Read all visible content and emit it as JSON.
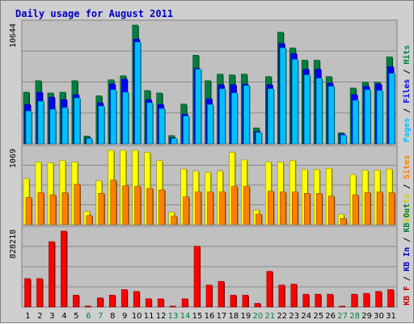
{
  "chart_data": {
    "type": "bar",
    "title": "Daily usage for August 2011",
    "categories": [
      "1",
      "2",
      "3",
      "4",
      "5",
      "6",
      "7",
      "8",
      "9",
      "10",
      "11",
      "12",
      "13",
      "14",
      "15",
      "16",
      "17",
      "18",
      "19",
      "20",
      "21",
      "22",
      "23",
      "24",
      "25",
      "26",
      "27",
      "28",
      "29",
      "30",
      "31"
    ],
    "weekend_days": [
      "6",
      "7",
      "13",
      "14",
      "20",
      "21",
      "27",
      "28"
    ],
    "panels": [
      {
        "name": "top",
        "ymax_label": "10644",
        "ymax": 10644,
        "legend": [
          "Pages",
          "/",
          "Files",
          "/",
          "Hits"
        ],
        "series": [
          {
            "name": "Hits",
            "color": "#008040",
            "values": [
              4630,
              5660,
              4560,
              4630,
              5660,
              700,
              4300,
              5740,
              6100,
              10644,
              4780,
              4560,
              740,
              3560,
              7940,
              5660,
              6250,
              6180,
              6250,
              1430,
              6030,
              10000,
              8600,
              7500,
              7500,
              6030,
              990,
              5000,
              5520,
              5520,
              7790
            ]
          },
          {
            "name": "Files",
            "color": "#0000ff",
            "values": [
              3530,
              4630,
              4190,
              3970,
              4410,
              530,
              3680,
              5370,
              5810,
              9400,
              3970,
              3530,
              530,
              2650,
              6760,
              4050,
              5300,
              5300,
              5360,
              1100,
              5300,
              9000,
              8100,
              6690,
              6690,
              5440,
              880,
              4410,
              5150,
              5370,
              6910
            ]
          },
          {
            "name": "Pages",
            "color": "#00c0ff",
            "values": [
              2940,
              3820,
              3090,
              3240,
              4120,
              480,
              3390,
              4850,
              4630,
              9120,
              3680,
              3160,
              480,
              2500,
              6690,
              3530,
              4930,
              4560,
              5220,
              1030,
              4930,
              8600,
              7570,
              6180,
              5880,
              5150,
              780,
              3900,
              4850,
              4780,
              6320
            ]
          }
        ]
      },
      {
        "name": "middle",
        "ymax_label": "1069",
        "ymax": 1069,
        "legend": [
          "Visits",
          "/",
          "Sites"
        ],
        "series": [
          {
            "name": "Visits",
            "color": "#ffff00",
            "values": [
              660,
              900,
              890,
              920,
              900,
              190,
              630,
              1069,
              1069,
              1069,
              1040,
              920,
              180,
              800,
              770,
              750,
              770,
              1040,
              930,
              210,
              900,
              900,
              920,
              790,
              790,
              810,
              150,
              720,
              780,
              780,
              800
            ]
          },
          {
            "name": "Sites",
            "color": "#ff8000",
            "values": [
              390,
              460,
              430,
              460,
              580,
              130,
              450,
              640,
              560,
              550,
              520,
              500,
              120,
              400,
              470,
              470,
              470,
              550,
              550,
              150,
              480,
              470,
              470,
              450,
              450,
              410,
              90,
              430,
              460,
              470,
              460
            ]
          }
        ]
      },
      {
        "name": "bottom",
        "ymax_label": "828218",
        "ymax": 828218,
        "legend": [
          "KB",
          "F",
          "/",
          "KB",
          "In",
          "/",
          "KB",
          "Out"
        ],
        "series": [
          {
            "name": "KB F",
            "color": "#ff0000",
            "values": [
              310000,
              310000,
              713000,
              828218,
              130000,
              12000,
              100000,
              130000,
              190000,
              170000,
              90000,
              90000,
              10000,
              90000,
              663000,
              240000,
              280000,
              130000,
              130000,
              40000,
              390000,
              240000,
              250000,
              140000,
              140000,
              140000,
              10000,
              140000,
              150000,
              170000,
              190000
            ]
          }
        ]
      }
    ]
  }
}
